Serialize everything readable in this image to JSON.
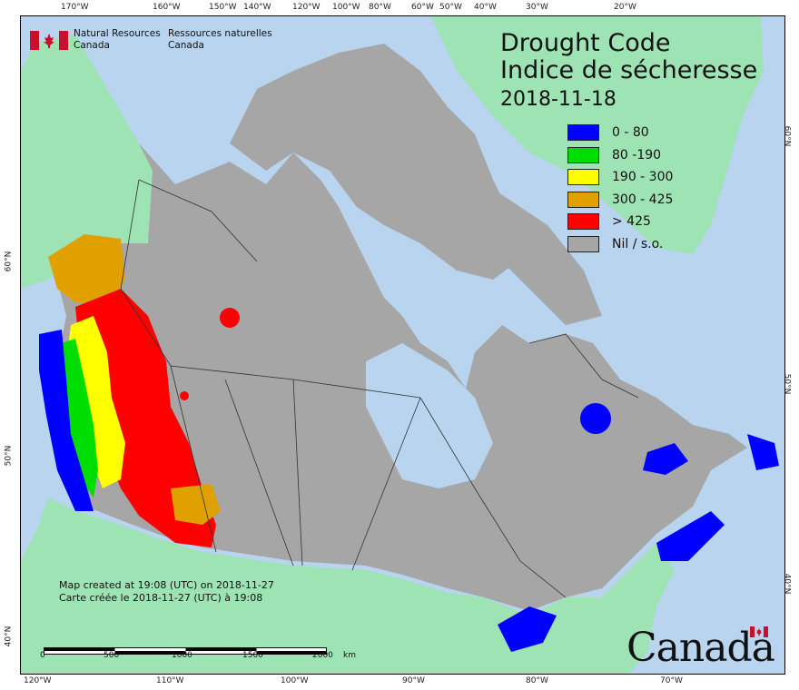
{
  "title": {
    "en": "Drought Code",
    "fr": "Indice de sécheresse",
    "date": "2018-11-18"
  },
  "legend": [
    {
      "label": "0 - 80",
      "color": "#0000ff"
    },
    {
      "label": "80 -190",
      "color": "#00dd00"
    },
    {
      "label": "190 - 300",
      "color": "#ffff00"
    },
    {
      "label": "300 - 425",
      "color": "#e0a000"
    },
    {
      "label": "> 425",
      "color": "#ff0000"
    },
    {
      "label": "Nil / s.o.",
      "color": "#a6a6a6"
    }
  ],
  "agency": {
    "en_line1": "Natural Resources",
    "en_line2": "Canada",
    "fr_line1": "Ressources naturelles",
    "fr_line2": "Canada"
  },
  "credits": {
    "line1": "Map created at 19:08 (UTC) on 2018-11-27",
    "line2": "Carte créée le 2018-11-27 (UTC) à 19:08"
  },
  "scale": {
    "ticks": [
      "0",
      "500",
      "1000",
      "1500",
      "2000"
    ],
    "unit": "km"
  },
  "wordmark": "Canada",
  "graticule": {
    "top": [
      "170°W",
      "160°W",
      "150°W",
      "140°W",
      "120°W",
      "100°W",
      "80°W",
      "60°W",
      "50°W",
      "40°W",
      "30°W",
      "20°W"
    ],
    "bottom": [
      "120°W",
      "110°W",
      "100°W",
      "90°W",
      "80°W",
      "70°W"
    ],
    "left": [
      "60°N",
      "50°N",
      "40°N"
    ],
    "right": [
      "60°N",
      "50°N",
      "40°N"
    ]
  },
  "colors": {
    "ocean": "#b9d4ee",
    "land_other": "#9de3b4",
    "land_nil": "#a6a6a6"
  }
}
